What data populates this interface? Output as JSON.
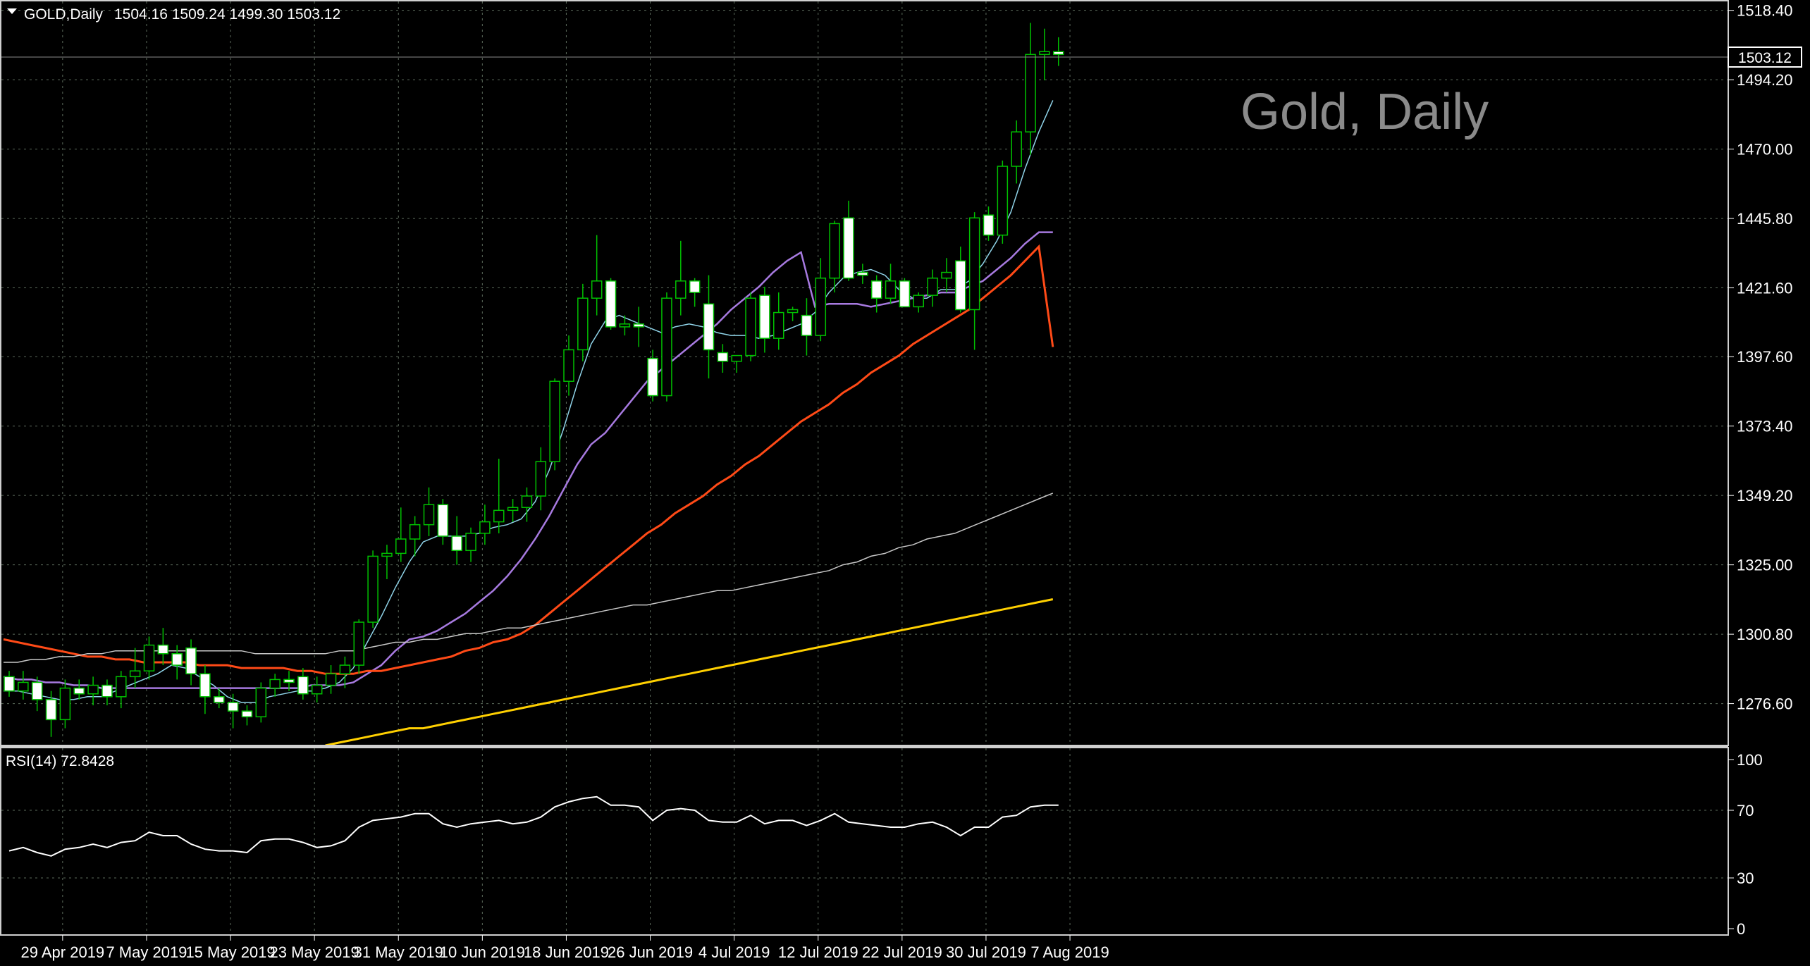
{
  "header": {
    "symbol_label": "GOLD,Daily",
    "ohlc": "1504.16 1509.24 1499.30 1503.12"
  },
  "watermark": "Gold, Daily",
  "rsi_label": "RSI(14) 72.8428",
  "current_price": "1503.12",
  "colors": {
    "background": "#000000",
    "grid": "#5c6b5c",
    "bull_candle": "#00c000",
    "bear_fill": "#ffffff",
    "ma_fast": "#8fd3e8",
    "ma_20": "#a77ae0",
    "ma_50": "#ff4a17",
    "ma_100": "#c8c8c8",
    "ma_200": "#ffd000",
    "rsi": "#ffffff",
    "watermark": "#8a8a8a"
  },
  "chart_data": [
    {
      "type": "candlestick",
      "yticks": [
        "1518.40",
        "1494.20",
        "1470.00",
        "1445.80",
        "1421.60",
        "1397.60",
        "1373.40",
        "1349.20",
        "1325.00",
        "1300.80",
        "1276.60"
      ],
      "ylim": [
        1262,
        1522
      ],
      "x_labels": [
        {
          "index": 1,
          "label": "29 Apr 2019"
        },
        {
          "index": 7,
          "label": "7 May 2019"
        },
        {
          "index": 13,
          "label": "15 May 2019"
        },
        {
          "index": 19,
          "label": "23 May 2019"
        },
        {
          "index": 25,
          "label": "31 May 2019"
        },
        {
          "index": 31,
          "label": "10 Jun 2019"
        },
        {
          "index": 37,
          "label": "18 Jun 2019"
        },
        {
          "index": 43,
          "label": "26 Jun 2019"
        },
        {
          "index": 49,
          "label": "4 Jul 2019"
        },
        {
          "index": 55,
          "label": "12 Jul 2019"
        },
        {
          "index": 61,
          "label": "22 Jul 2019"
        },
        {
          "index": 67,
          "label": "30 Jul 2019"
        },
        {
          "index": 73,
          "label": "7 Aug 2019"
        }
      ],
      "candles": [
        [
          1286,
          1288,
          1279,
          1281
        ],
        [
          1281,
          1288,
          1278,
          1284
        ],
        [
          1284,
          1286,
          1274,
          1278
        ],
        [
          1278,
          1281,
          1265,
          1271
        ],
        [
          1271,
          1285,
          1268,
          1282
        ],
        [
          1282,
          1285,
          1278,
          1280
        ],
        [
          1280,
          1286,
          1276,
          1283
        ],
        [
          1283,
          1285,
          1276,
          1279
        ],
        [
          1279,
          1288,
          1275,
          1286
        ],
        [
          1286,
          1296,
          1282,
          1288
        ],
        [
          1288,
          1300,
          1285,
          1297
        ],
        [
          1297,
          1303,
          1290,
          1294
        ],
        [
          1294,
          1297,
          1285,
          1290
        ],
        [
          1296,
          1299,
          1283,
          1287
        ],
        [
          1287,
          1290,
          1273,
          1279
        ],
        [
          1279,
          1282,
          1275,
          1277
        ],
        [
          1277,
          1280,
          1268,
          1274
        ],
        [
          1274,
          1276,
          1269,
          1272
        ],
        [
          1272,
          1284,
          1270,
          1282
        ],
        [
          1282,
          1287,
          1279,
          1285
        ],
        [
          1285,
          1288,
          1281,
          1284
        ],
        [
          1286,
          1289,
          1278,
          1280
        ],
        [
          1280,
          1286,
          1277,
          1283
        ],
        [
          1283,
          1290,
          1280,
          1287
        ],
        [
          1287,
          1293,
          1282,
          1290
        ],
        [
          1290,
          1306,
          1287,
          1305
        ],
        [
          1305,
          1330,
          1303,
          1328
        ],
        [
          1328,
          1332,
          1320,
          1329
        ],
        [
          1329,
          1345,
          1326,
          1334
        ],
        [
          1334,
          1342,
          1328,
          1339
        ],
        [
          1339,
          1352,
          1335,
          1346
        ],
        [
          1346,
          1348,
          1332,
          1335
        ],
        [
          1335,
          1342,
          1325,
          1330
        ],
        [
          1330,
          1338,
          1326,
          1336
        ],
        [
          1336,
          1346,
          1332,
          1340
        ],
        [
          1340,
          1362,
          1336,
          1344
        ],
        [
          1344,
          1348,
          1340,
          1345
        ],
        [
          1345,
          1352,
          1340,
          1349
        ],
        [
          1349,
          1366,
          1344,
          1361
        ],
        [
          1361,
          1390,
          1358,
          1389
        ],
        [
          1389,
          1405,
          1384,
          1400
        ],
        [
          1400,
          1423,
          1396,
          1418
        ],
        [
          1418,
          1440,
          1412,
          1424
        ],
        [
          1424,
          1425,
          1407,
          1408
        ],
        [
          1408,
          1412,
          1405,
          1409
        ],
        [
          1409,
          1415,
          1401,
          1408
        ],
        [
          1397,
          1400,
          1382,
          1384
        ],
        [
          1384,
          1420,
          1382,
          1418
        ],
        [
          1418,
          1438,
          1412,
          1424
        ],
        [
          1424,
          1425,
          1415,
          1420
        ],
        [
          1416,
          1426,
          1390,
          1400
        ],
        [
          1399,
          1402,
          1392,
          1396
        ],
        [
          1396,
          1398,
          1392,
          1398
        ],
        [
          1398,
          1420,
          1396,
          1418
        ],
        [
          1419,
          1422,
          1399,
          1404
        ],
        [
          1404,
          1420,
          1400,
          1413
        ],
        [
          1413,
          1415,
          1410,
          1414
        ],
        [
          1412,
          1418,
          1398,
          1405
        ],
        [
          1405,
          1432,
          1403,
          1425
        ],
        [
          1425,
          1445,
          1420,
          1444
        ],
        [
          1446,
          1452,
          1424,
          1425
        ],
        [
          1427,
          1430,
          1423,
          1426
        ],
        [
          1424,
          1426,
          1413,
          1418
        ],
        [
          1418,
          1430,
          1416,
          1424
        ],
        [
          1424,
          1425,
          1415,
          1415
        ],
        [
          1415,
          1420,
          1413,
          1419
        ],
        [
          1419,
          1428,
          1415,
          1425
        ],
        [
          1425,
          1432,
          1420,
          1427
        ],
        [
          1431,
          1436,
          1413,
          1414
        ],
        [
          1414,
          1448,
          1400,
          1446
        ],
        [
          1447,
          1450,
          1438,
          1440
        ],
        [
          1440,
          1466,
          1437,
          1464
        ],
        [
          1464,
          1480,
          1458,
          1476
        ],
        [
          1476,
          1514,
          1468,
          1503
        ],
        [
          1503,
          1512,
          1494,
          1504
        ],
        [
          1504,
          1509,
          1499,
          1503
        ]
      ],
      "series": [
        {
          "key": "ma_fast",
          "values": [
            1281,
            1281,
            1280,
            1279,
            1278,
            1278,
            1279,
            1279,
            1281,
            1283,
            1285,
            1287,
            1290,
            1289,
            1286,
            1283,
            1279,
            1277,
            1277,
            1279,
            1280,
            1281,
            1281,
            1282,
            1284,
            1289,
            1298,
            1307,
            1317,
            1326,
            1333,
            1335,
            1335,
            1335,
            1336,
            1338,
            1339,
            1341,
            1347,
            1358,
            1372,
            1388,
            1402,
            1410,
            1412,
            1410,
            1408,
            1406,
            1408,
            1409,
            1408,
            1406,
            1405,
            1405,
            1404,
            1405,
            1407,
            1409,
            1413,
            1420,
            1425,
            1427,
            1428,
            1426,
            1421,
            1418,
            1418,
            1421,
            1421,
            1424,
            1430,
            1438,
            1448,
            1463,
            1476,
            1487
          ]
        },
        {
          "key": "ma_20",
          "values": [
            1286,
            1285,
            1285,
            1284,
            1284,
            1283,
            1283,
            1282,
            1282,
            1282,
            1282,
            1282,
            1282,
            1282,
            1282,
            1282,
            1282,
            1282,
            1282,
            1282,
            1282,
            1282,
            1283,
            1283,
            1283,
            1284,
            1287,
            1290,
            1295,
            1299,
            1300,
            1302,
            1305,
            1308,
            1312,
            1316,
            1321,
            1327,
            1334,
            1342,
            1351,
            1360,
            1367,
            1371,
            1377,
            1383,
            1389,
            1393,
            1397,
            1401,
            1405,
            1409,
            1414,
            1418,
            1422,
            1427,
            1431,
            1434,
            1415,
            1416,
            1416,
            1416,
            1415,
            1416,
            1417,
            1418,
            1419,
            1420,
            1420,
            1422,
            1424,
            1428,
            1432,
            1437,
            1441,
            1441
          ]
        },
        {
          "key": "ma_50",
          "values": [
            1299,
            1298,
            1297,
            1296,
            1295,
            1294,
            1293,
            1293,
            1292,
            1292,
            1291,
            1291,
            1291,
            1291,
            1290,
            1290,
            1290,
            1289,
            1289,
            1289,
            1289,
            1288,
            1288,
            1287,
            1287,
            1287,
            1288,
            1288,
            1289,
            1290,
            1291,
            1292,
            1293,
            1295,
            1296,
            1298,
            1299,
            1301,
            1304,
            1308,
            1312,
            1316,
            1320,
            1324,
            1328,
            1332,
            1336,
            1339,
            1343,
            1346,
            1349,
            1353,
            1356,
            1360,
            1363,
            1367,
            1371,
            1375,
            1378,
            1381,
            1385,
            1388,
            1392,
            1395,
            1398,
            1402,
            1405,
            1408,
            1411,
            1414,
            1418,
            1422,
            1426,
            1431,
            1436,
            1401
          ]
        },
        {
          "key": "ma_100",
          "values": [
            1291,
            1291,
            1292,
            1292,
            1293,
            1293,
            1294,
            1294,
            1295,
            1295,
            1295,
            1295,
            1295,
            1295,
            1295,
            1295,
            1295,
            1295,
            1294,
            1294,
            1294,
            1294,
            1294,
            1294,
            1295,
            1295,
            1296,
            1297,
            1298,
            1298,
            1299,
            1299,
            1300,
            1301,
            1301,
            1302,
            1303,
            1303,
            1304,
            1305,
            1306,
            1307,
            1308,
            1309,
            1310,
            1311,
            1311,
            1312,
            1313,
            1314,
            1315,
            1316,
            1316,
            1317,
            1318,
            1319,
            1320,
            1321,
            1322,
            1323,
            1325,
            1326,
            1328,
            1329,
            1331,
            1332,
            1334,
            1335,
            1336,
            1338,
            1340,
            1342,
            1344,
            1346,
            1348,
            1350
          ]
        },
        {
          "key": "ma_200",
          "values": [
            null,
            null,
            null,
            null,
            null,
            null,
            null,
            null,
            null,
            null,
            null,
            null,
            null,
            null,
            null,
            null,
            null,
            null,
            null,
            null,
            null,
            null,
            null,
            1262,
            1263,
            1264,
            1265,
            1266,
            1267,
            1268,
            1268,
            1269,
            1270,
            1271,
            1272,
            1273,
            1274,
            1275,
            1276,
            1277,
            1278,
            1279,
            1280,
            1281,
            1282,
            1283,
            1284,
            1285,
            1286,
            1287,
            1288,
            1289,
            1290,
            1291,
            1292,
            1293,
            1294,
            1295,
            1296,
            1297,
            1298,
            1299,
            1300,
            1301,
            1302,
            1303,
            1304,
            1305,
            1306,
            1307,
            1308,
            1309,
            1310,
            1311,
            1312,
            1313
          ]
        }
      ]
    },
    {
      "type": "line",
      "name": "RSI(14)",
      "yticks": [
        "100",
        "70",
        "30",
        "0"
      ],
      "ylim": [
        0,
        100
      ],
      "values": [
        46,
        48,
        45,
        43,
        47,
        48,
        50,
        48,
        51,
        52,
        57,
        55,
        55,
        50,
        47,
        46,
        46,
        45,
        52,
        53,
        53,
        51,
        48,
        49,
        52,
        60,
        64,
        65,
        66,
        68,
        68,
        62,
        60,
        62,
        63,
        64,
        62,
        63,
        66,
        72,
        75,
        77,
        78,
        73,
        73,
        72,
        64,
        70,
        71,
        70,
        64,
        63,
        63,
        67,
        62,
        64,
        64,
        61,
        64,
        68,
        63,
        62,
        61,
        60,
        60,
        62,
        63,
        60,
        55,
        60,
        60,
        66,
        67,
        72,
        73,
        73
      ]
    }
  ]
}
